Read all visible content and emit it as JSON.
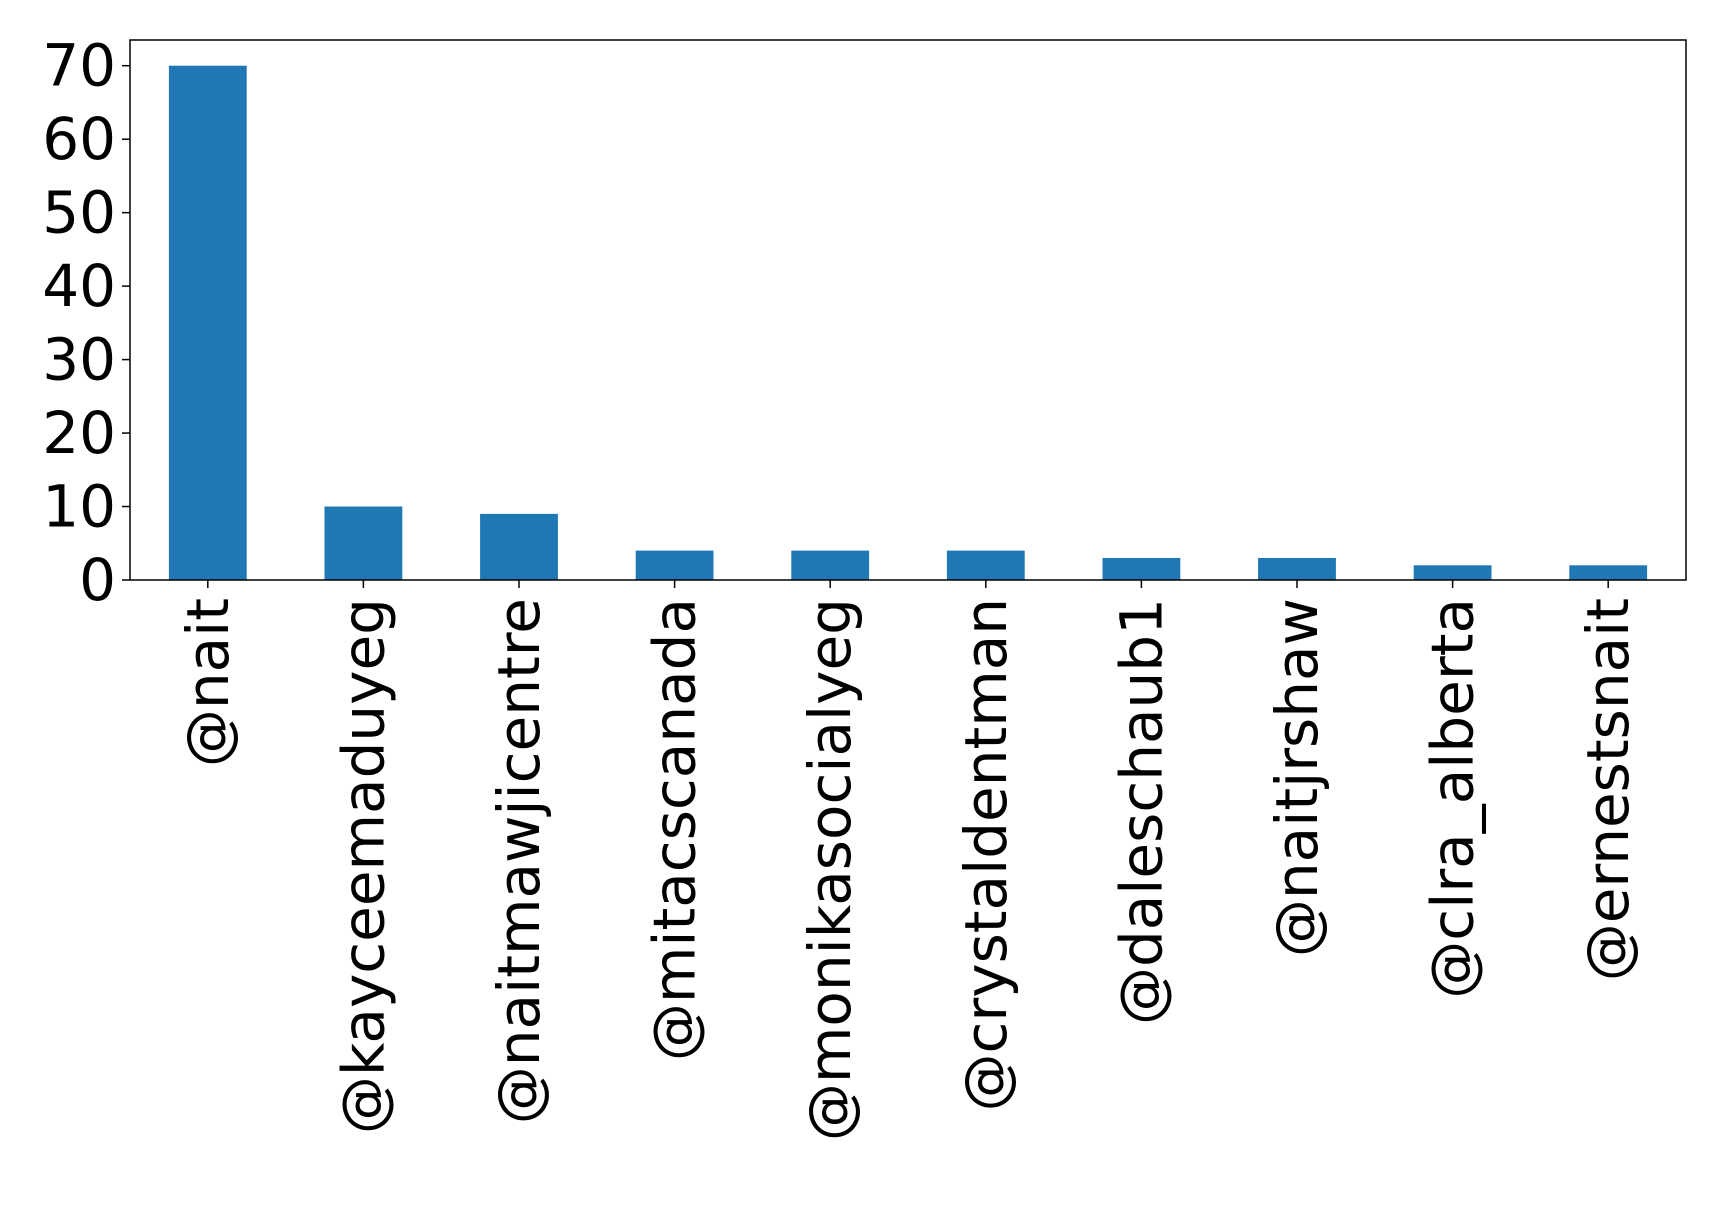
{
  "chart_data": {
    "type": "bar",
    "categories": [
      "@nait",
      "@kayceemaduyeg",
      "@naitmawjicentre",
      "@mitacscanada",
      "@monikasocialyeg",
      "@crystaldentman",
      "@daleschaub1",
      "@naitjrshaw",
      "@clra_alberta",
      "@ernestsnait"
    ],
    "values": [
      70,
      10,
      9,
      4,
      4,
      4,
      3,
      3,
      2,
      2
    ],
    "title": "",
    "xlabel": "",
    "ylabel": "",
    "ylim": [
      0,
      73.5
    ],
    "yticks": [
      0,
      10,
      20,
      30,
      40,
      50,
      60,
      70
    ],
    "bar_color": "#1f77b4",
    "grid": false,
    "legend": "none"
  }
}
